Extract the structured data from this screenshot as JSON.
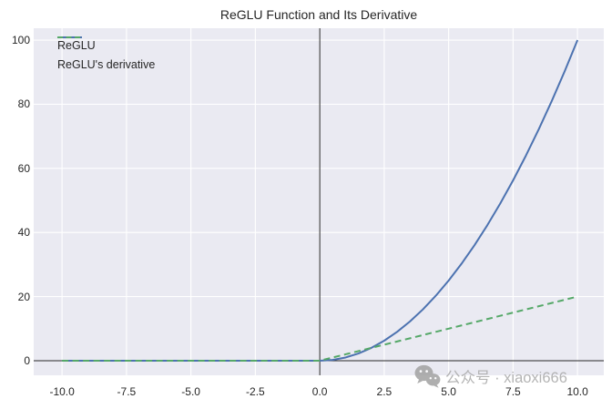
{
  "title": "ReGLU Function and Its Derivative",
  "watermark": {
    "icon": "wechat-icon",
    "text": "公众号 · xiaoxi666"
  },
  "colors": {
    "plot_bg": "#eaeaf2",
    "grid": "#ffffff",
    "axis_line": "#262626",
    "text": "#262626",
    "reglu": "#4c72b0",
    "derivative": "#55a868",
    "watermark": "#a8a8a8"
  },
  "chart_data": {
    "type": "line",
    "title": "ReGLU Function and Its Derivative",
    "xlabel": "",
    "ylabel": "",
    "grid": true,
    "legend_position": "upper left",
    "xlim": [
      -11.1,
      11.02
    ],
    "ylim": [
      -4.55,
      103.7
    ],
    "xticks": {
      "values": [
        -10,
        -7.5,
        -5,
        -2.5,
        0,
        2.5,
        5,
        7.5,
        10
      ],
      "labels": [
        "-10.0",
        "-7.5",
        "-5.0",
        "-2.5",
        "0.0",
        "2.5",
        "5.0",
        "7.5",
        "10.0"
      ]
    },
    "yticks": {
      "values": [
        0,
        20,
        40,
        60,
        80,
        100
      ],
      "labels": [
        "0",
        "20",
        "40",
        "60",
        "80",
        "100"
      ]
    },
    "axlines": {
      "vline_x": 0,
      "hline_y": 0
    },
    "x": [
      -10,
      -9.5,
      -9,
      -8.5,
      -8,
      -7.5,
      -7,
      -6.5,
      -6,
      -5.5,
      -5,
      -4.5,
      -4,
      -3.5,
      -3,
      -2.5,
      -2,
      -1.5,
      -1,
      -0.5,
      0,
      0.5,
      1,
      1.5,
      2,
      2.5,
      3,
      3.5,
      4,
      4.5,
      5,
      5.5,
      6,
      6.5,
      7,
      7.5,
      8,
      8.5,
      9,
      9.5,
      10
    ],
    "series": [
      {
        "name": "ReGLU",
        "style": "solid",
        "color": "#4c72b0",
        "values": [
          0,
          0,
          0,
          0,
          0,
          0,
          0,
          0,
          0,
          0,
          0,
          0,
          0,
          0,
          0,
          0,
          0,
          0,
          0,
          0,
          0,
          0.25,
          1,
          2.25,
          4,
          6.25,
          9,
          12.25,
          16,
          20.25,
          25,
          30.25,
          36,
          42.25,
          49,
          56.25,
          64,
          72.25,
          81,
          90.25,
          100
        ]
      },
      {
        "name": "ReGLU's derivative",
        "style": "dashed",
        "color": "#55a868",
        "values": [
          0,
          0,
          0,
          0,
          0,
          0,
          0,
          0,
          0,
          0,
          0,
          0,
          0,
          0,
          0,
          0,
          0,
          0,
          0,
          0,
          0,
          1,
          2,
          3,
          4,
          5,
          6,
          7,
          8,
          9,
          10,
          11,
          12,
          13,
          14,
          15,
          16,
          17,
          18,
          19,
          20
        ]
      }
    ]
  }
}
